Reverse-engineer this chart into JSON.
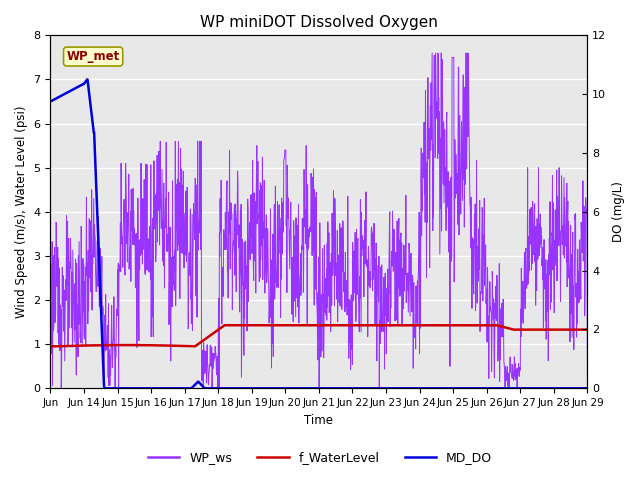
{
  "title": "WP miniDOT Dissolved Oxygen",
  "ylabel_left": "Wind Speed (m/s), Water Level (psi)",
  "ylabel_right": "DO (mg/L)",
  "xlabel": "Time",
  "ylim_left": [
    0.0,
    8.0
  ],
  "ylim_right": [
    0,
    12
  ],
  "yticks_left": [
    0.0,
    1.0,
    2.0,
    3.0,
    4.0,
    5.0,
    6.0,
    7.0,
    8.0
  ],
  "yticks_right": [
    0,
    2,
    4,
    6,
    8,
    10,
    12
  ],
  "xtick_positions": [
    0,
    1,
    2,
    3,
    4,
    5,
    6,
    7,
    8,
    9,
    10,
    11,
    12,
    13,
    14,
    15,
    16
  ],
  "xtick_labels": [
    "Jun",
    "Jun 14",
    "Jun 15",
    "Jun 16",
    "Jun 17",
    "Jun 18",
    "Jun 19",
    "Jun 20",
    "Jun 21",
    "Jun 22",
    "Jun 23",
    "Jun 24",
    "Jun 25",
    "Jun 26",
    "Jun 27",
    "Jun 28",
    "Jun 29"
  ],
  "annotation_text": "WP_met",
  "annotation_bg": "#ffffcc",
  "annotation_border": "#999900",
  "annotation_text_color": "#8b0000",
  "bg_color": "#e8e8e8",
  "line_wp_ws_color": "#9933ff",
  "line_waterlevel_color": "#cc0000",
  "line_do_color": "#0000dd",
  "legend_labels": [
    "WP_ws",
    "f_WaterLevel",
    "MD_DO"
  ],
  "xlim": [
    0,
    16
  ]
}
